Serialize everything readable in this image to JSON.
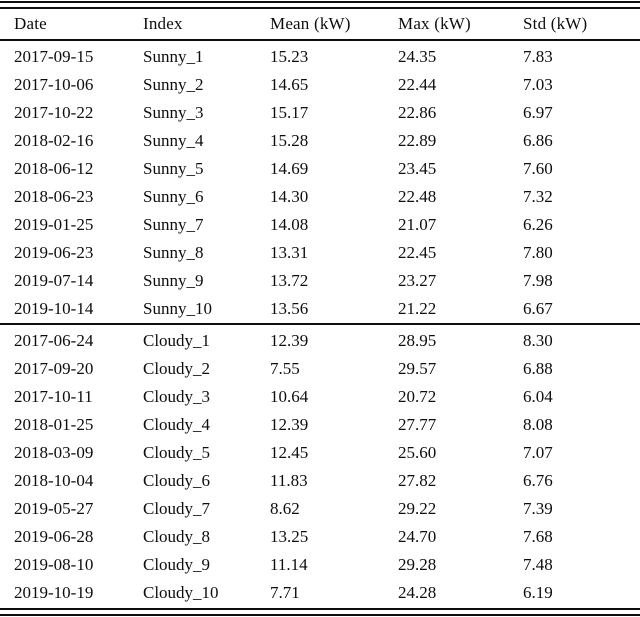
{
  "colors": {
    "background": "#ffffff",
    "text": "#0d0d0d",
    "rule": "#0d0d0d"
  },
  "table": {
    "columns": [
      "Date",
      "Index",
      "Mean (kW)",
      "Max (kW)",
      "Std (kW)"
    ],
    "column_keys": [
      "date",
      "index",
      "mean-kw",
      "max-kw",
      "std-kw"
    ],
    "groups": [
      {
        "name": "sunny",
        "rows": [
          [
            "2017-09-15",
            "Sunny_1",
            "15.23",
            "24.35",
            "7.83"
          ],
          [
            "2017-10-06",
            "Sunny_2",
            "14.65",
            "22.44",
            "7.03"
          ],
          [
            "2017-10-22",
            "Sunny_3",
            "15.17",
            "22.86",
            "6.97"
          ],
          [
            "2018-02-16",
            "Sunny_4",
            "15.28",
            "22.89",
            "6.86"
          ],
          [
            "2018-06-12",
            "Sunny_5",
            "14.69",
            "23.45",
            "7.60"
          ],
          [
            "2018-06-23",
            "Sunny_6",
            "14.30",
            "22.48",
            "7.32"
          ],
          [
            "2019-01-25",
            "Sunny_7",
            "14.08",
            "21.07",
            "6.26"
          ],
          [
            "2019-06-23",
            "Sunny_8",
            "13.31",
            "22.45",
            "7.80"
          ],
          [
            "2019-07-14",
            "Sunny_9",
            "13.72",
            "23.27",
            "7.98"
          ],
          [
            "2019-10-14",
            "Sunny_10",
            "13.56",
            "21.22",
            "6.67"
          ]
        ]
      },
      {
        "name": "cloudy",
        "rows": [
          [
            "2017-06-24",
            "Cloudy_1",
            "12.39",
            "28.95",
            "8.30"
          ],
          [
            "2017-09-20",
            "Cloudy_2",
            "7.55",
            "29.57",
            "6.88"
          ],
          [
            "2017-10-11",
            "Cloudy_3",
            "10.64",
            "20.72",
            "6.04"
          ],
          [
            "2018-01-25",
            "Cloudy_4",
            "12.39",
            "27.77",
            "8.08"
          ],
          [
            "2018-03-09",
            "Cloudy_5",
            "12.45",
            "25.60",
            "7.07"
          ],
          [
            "2018-10-04",
            "Cloudy_6",
            "11.83",
            "27.82",
            "6.76"
          ],
          [
            "2019-05-27",
            "Cloudy_7",
            "8.62",
            "29.22",
            "7.39"
          ],
          [
            "2019-06-28",
            "Cloudy_8",
            "13.25",
            "24.70",
            "7.68"
          ],
          [
            "2019-08-10",
            "Cloudy_9",
            "11.14",
            "29.28",
            "7.48"
          ],
          [
            "2019-10-19",
            "Cloudy_10",
            "7.71",
            "24.28",
            "6.19"
          ]
        ]
      }
    ]
  },
  "chart_data": {
    "type": "table",
    "columns": [
      "Date",
      "Index",
      "Mean (kW)",
      "Max (kW)",
      "Std (kW)"
    ],
    "rows": [
      [
        "2017-09-15",
        "Sunny_1",
        15.23,
        24.35,
        7.83
      ],
      [
        "2017-10-06",
        "Sunny_2",
        14.65,
        22.44,
        7.03
      ],
      [
        "2017-10-22",
        "Sunny_3",
        15.17,
        22.86,
        6.97
      ],
      [
        "2018-02-16",
        "Sunny_4",
        15.28,
        22.89,
        6.86
      ],
      [
        "2018-06-12",
        "Sunny_5",
        14.69,
        23.45,
        7.6
      ],
      [
        "2018-06-23",
        "Sunny_6",
        14.3,
        22.48,
        7.32
      ],
      [
        "2019-01-25",
        "Sunny_7",
        14.08,
        21.07,
        6.26
      ],
      [
        "2019-06-23",
        "Sunny_8",
        13.31,
        22.45,
        7.8
      ],
      [
        "2019-07-14",
        "Sunny_9",
        13.72,
        23.27,
        7.98
      ],
      [
        "2019-10-14",
        "Sunny_10",
        13.56,
        21.22,
        6.67
      ],
      [
        "2017-06-24",
        "Cloudy_1",
        12.39,
        28.95,
        8.3
      ],
      [
        "2017-09-20",
        "Cloudy_2",
        7.55,
        29.57,
        6.88
      ],
      [
        "2017-10-11",
        "Cloudy_3",
        10.64,
        20.72,
        6.04
      ],
      [
        "2018-01-25",
        "Cloudy_4",
        12.39,
        27.77,
        8.08
      ],
      [
        "2018-03-09",
        "Cloudy_5",
        12.45,
        25.6,
        7.07
      ],
      [
        "2018-10-04",
        "Cloudy_6",
        11.83,
        27.82,
        6.76
      ],
      [
        "2019-05-27",
        "Cloudy_7",
        8.62,
        29.22,
        7.39
      ],
      [
        "2019-06-28",
        "Cloudy_8",
        13.25,
        24.7,
        7.68
      ],
      [
        "2019-08-10",
        "Cloudy_9",
        11.14,
        29.28,
        7.48
      ],
      [
        "2019-10-19",
        "Cloudy_10",
        7.71,
        24.28,
        6.19
      ]
    ]
  }
}
